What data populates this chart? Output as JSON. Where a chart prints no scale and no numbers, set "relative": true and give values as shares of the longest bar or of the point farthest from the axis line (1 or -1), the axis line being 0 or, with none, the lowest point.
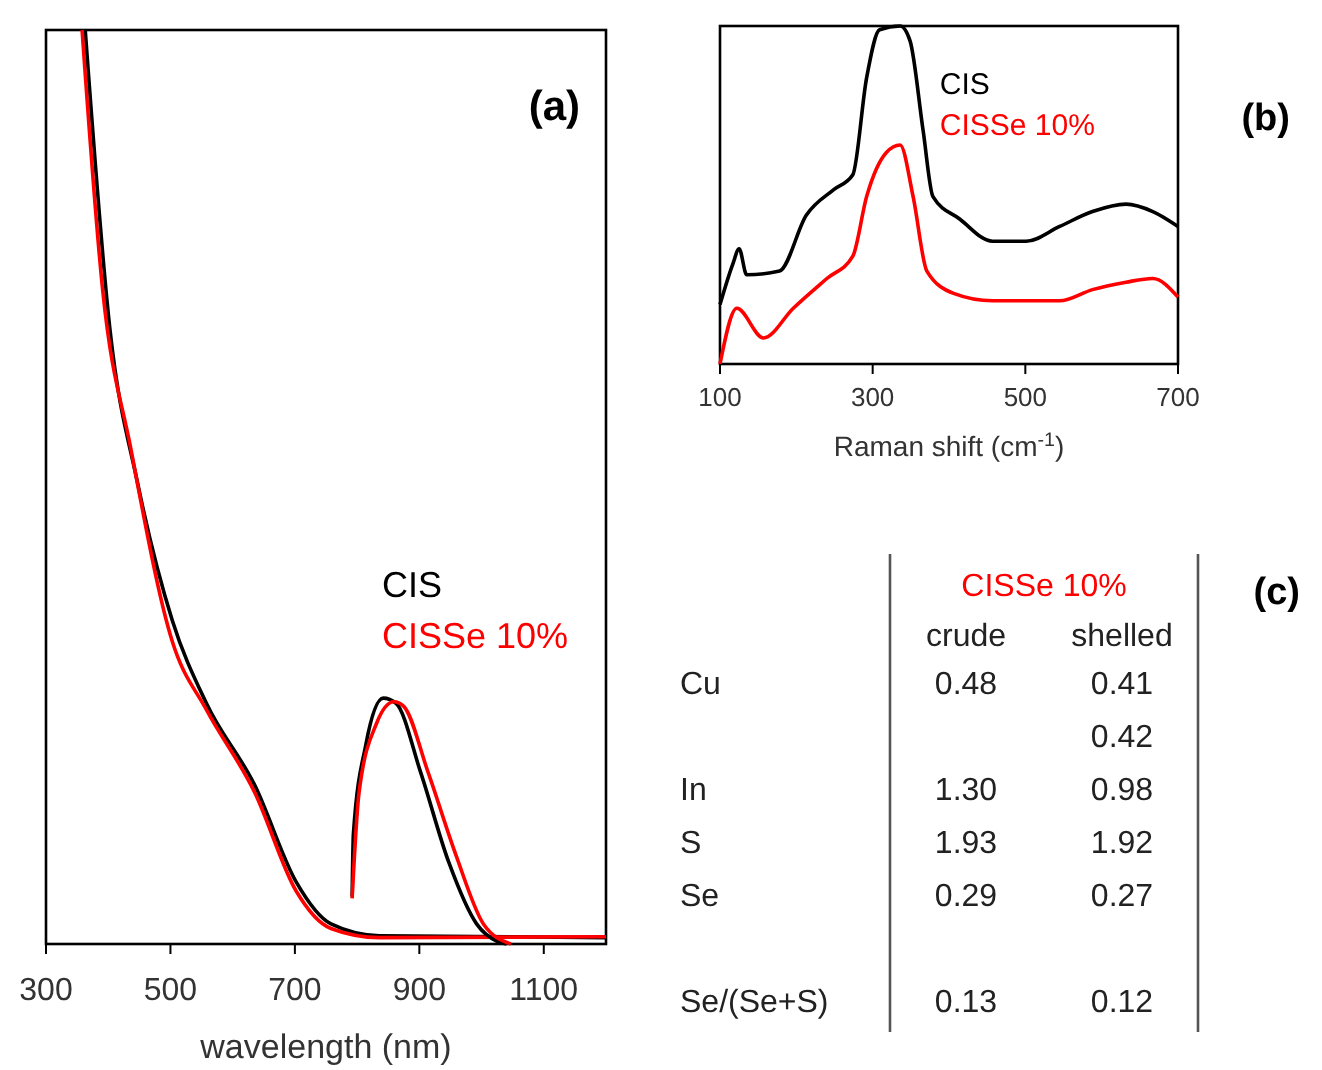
{
  "chart_data": [
    {
      "type": "line",
      "title": "(a)",
      "xlabel": "wavelength (nm)",
      "relative": true,
      "xlim": [
        300,
        1200
      ],
      "xticks": [
        300,
        500,
        700,
        900,
        1100
      ],
      "legend": "right",
      "grid": false,
      "series": [
        {
          "name": "CIS",
          "color": "#000000",
          "x": [
            363,
            403,
            447,
            503,
            558,
            636,
            702,
            758,
            836,
            1200
          ],
          "values": [
            1.0,
            0.671,
            0.505,
            0.354,
            0.263,
            0.173,
            0.068,
            0.022,
            0.009,
            0.007
          ]
        },
        {
          "name": "CISSe 10%",
          "color": "#ff0000",
          "x": [
            358,
            391,
            436,
            503,
            558,
            636,
            702,
            758,
            836,
            1200
          ],
          "values": [
            1.0,
            0.716,
            0.543,
            0.331,
            0.256,
            0.165,
            0.058,
            0.017,
            0.007,
            0.008
          ]
        },
        {
          "color": "#000000",
          "x": [
            792,
            794,
            814,
            842,
            863,
            902,
            947,
            992,
            1025,
            1040
          ],
          "values": [
            0.052,
            0.12,
            0.218,
            0.269,
            0.263,
            0.188,
            0.09,
            0.022,
            0.003,
            0.0
          ]
        },
        {
          "color": "#ff0000",
          "x": [
            792,
            803,
            831,
            859,
            875,
            914,
            959,
            1003,
            1047
          ],
          "values": [
            0.05,
            0.165,
            0.241,
            0.265,
            0.26,
            0.188,
            0.097,
            0.022,
            0.0
          ]
        }
      ]
    },
    {
      "type": "line",
      "annotations": [
        "(b)"
      ],
      "xlabel": "Raman shift (cm$^{-1}$)",
      "relative": true,
      "xlim": [
        100,
        700
      ],
      "xticks": [
        100,
        300,
        500,
        700
      ],
      "legend": "top",
      "grid": false,
      "series": [
        {
          "name": "CIS",
          "color": "#000000",
          "x": [
            100,
            117,
            125,
            135,
            178,
            213,
            249,
            274,
            292,
            309,
            336,
            349,
            366,
            379,
            414,
            457,
            501,
            545,
            588,
            632,
            667,
            700
          ],
          "values": [
            0.176,
            0.297,
            0.341,
            0.264,
            0.275,
            0.44,
            0.516,
            0.56,
            0.846,
            0.989,
            1.0,
            0.956,
            0.692,
            0.495,
            0.429,
            0.363,
            0.363,
            0.407,
            0.451,
            0.473,
            0.451,
            0.407
          ]
        },
        {
          "name": "CISSe 10%",
          "color": "#ff0000",
          "x": [
            100,
            122,
            157,
            196,
            240,
            274,
            292,
            318,
            336,
            353,
            371,
            406,
            457,
            501,
            545,
            588,
            632,
            667,
            700
          ],
          "values": [
            0.0,
            0.165,
            0.077,
            0.165,
            0.253,
            0.319,
            0.495,
            0.626,
            0.648,
            0.495,
            0.275,
            0.209,
            0.187,
            0.187,
            0.187,
            0.22,
            0.242,
            0.253,
            0.198
          ]
        }
      ]
    },
    {
      "type": "other",
      "title": "(c)",
      "subtitle": "CISSe 10%",
      "color": "#ff0000",
      "categories": [
        "crude",
        "shelled"
      ],
      "y_categories": [
        "Cu",
        null,
        "In",
        "S",
        "Se",
        null,
        "Se/(Se+S)"
      ],
      "cell_labels": [
        [
          "0.48",
          "0.41"
        ],
        [
          null,
          "0.42"
        ],
        [
          "1.30",
          "0.98"
        ],
        [
          "1.93",
          "1.92"
        ],
        [
          "0.29",
          "0.27"
        ],
        [
          null,
          null
        ],
        [
          "0.13",
          "0.12"
        ]
      ]
    }
  ]
}
